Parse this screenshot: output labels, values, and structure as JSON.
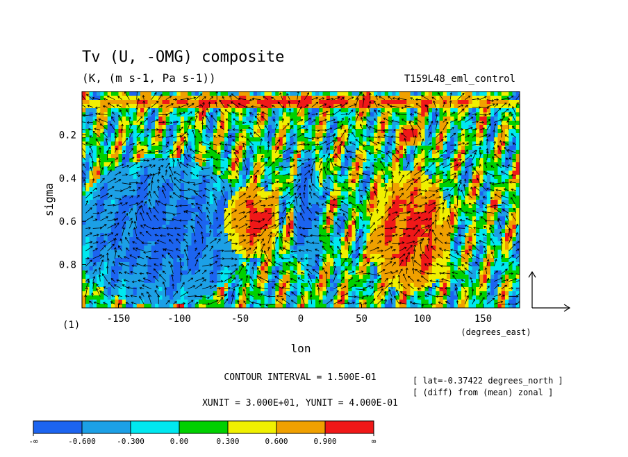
{
  "chart_data": {
    "type": "heatmap",
    "title": "Tv (U, -OMG) composite",
    "subtitle": "(K, (m s-1, Pa s-1))",
    "run_label": "T159L48_eml_control",
    "xlabel": "lon",
    "ylabel": "sigma",
    "x_unit_label": "(degrees_east)",
    "corner_label": "(1)",
    "xlim": [
      -180,
      180
    ],
    "ylim": [
      1.0,
      0.0
    ],
    "x_ticks": [
      {
        "value": -150,
        "label": "-150"
      },
      {
        "value": -100,
        "label": "-100"
      },
      {
        "value": -50,
        "label": "-50"
      },
      {
        "value": 0,
        "label": "0"
      },
      {
        "value": 50,
        "label": "50"
      },
      {
        "value": 100,
        "label": "100"
      },
      {
        "value": 150,
        "label": "150"
      }
    ],
    "y_ticks": [
      {
        "value": 0.2,
        "label": "0.2"
      },
      {
        "value": 0.4,
        "label": "0.4"
      },
      {
        "value": 0.6,
        "label": "0.6"
      },
      {
        "value": 0.8,
        "label": "0.8"
      }
    ],
    "contour_interval": "CONTOUR INTERVAL = 1.500E-01",
    "vector_units": "XUNIT = 3.000E+01, YUNIT = 4.000E-01",
    "notes": [
      "[ lat=-0.37422 degrees_north ]",
      "[ (diff) from (mean) zonal ]"
    ],
    "colorbar": {
      "labels": [
        "-∞",
        "-0.600",
        "-0.300",
        "0.00",
        "0.300",
        "0.600",
        "0.900",
        "∞"
      ],
      "bounds": [
        -0.9,
        -0.6,
        -0.3,
        0.0,
        0.3,
        0.6,
        0.9,
        1.2
      ],
      "colors": [
        "#1c64f0",
        "#1ca0e6",
        "#00e8f0",
        "#00d000",
        "#f0f000",
        "#f0a000",
        "#f01818"
      ]
    },
    "anomaly_regions": [
      {
        "lon": [
          -180,
          -50
        ],
        "sigma": [
          0.35,
          0.95
        ],
        "value": -0.75
      },
      {
        "lon": [
          -60,
          -20
        ],
        "sigma": [
          0.45,
          0.75
        ],
        "value": 1.0
      },
      {
        "lon": [
          -5,
          15
        ],
        "sigma": [
          0.3,
          0.8
        ],
        "value": -0.75
      },
      {
        "lon": [
          60,
          120
        ],
        "sigma": [
          0.4,
          0.9
        ],
        "value": 1.0
      },
      {
        "lon": [
          80,
          100
        ],
        "sigma": [
          0.15,
          0.25
        ],
        "value": 1.0
      },
      {
        "lon": [
          -180,
          180
        ],
        "sigma": [
          0.02,
          0.08
        ],
        "value": 1.0
      }
    ]
  }
}
